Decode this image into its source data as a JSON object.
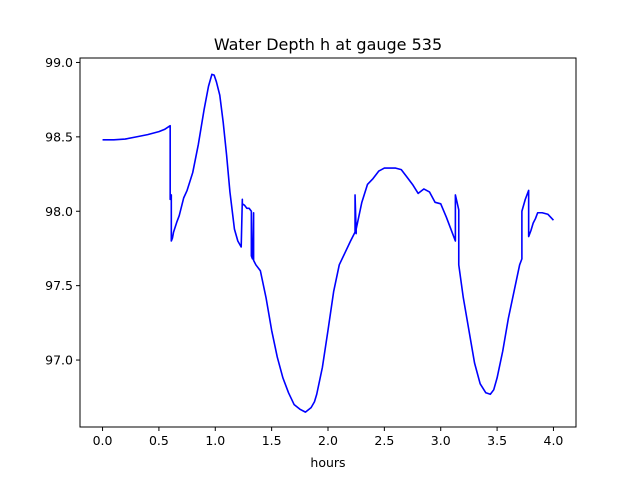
{
  "chart_data": {
    "type": "line",
    "title": "Water Depth h at gauge 535",
    "xlabel": "hours",
    "ylabel": "",
    "xlim": [
      -0.2,
      4.2
    ],
    "ylim": [
      96.55,
      99.03
    ],
    "xticks": [
      0.0,
      0.5,
      1.0,
      1.5,
      2.0,
      2.5,
      3.0,
      3.5,
      4.0
    ],
    "xtick_labels": [
      "0.0",
      "0.5",
      "1.0",
      "1.5",
      "2.0",
      "2.5",
      "3.0",
      "3.5",
      "4.0"
    ],
    "yticks": [
      97.0,
      97.5,
      98.0,
      98.5,
      99.0
    ],
    "ytick_labels": [
      "97.0",
      "97.5",
      "98.0",
      "98.5",
      "99.0"
    ],
    "grid": false,
    "legend": "none",
    "series": [
      {
        "color": "#0000ff",
        "x": [
          0.0,
          0.1,
          0.2,
          0.3,
          0.4,
          0.5,
          0.55,
          0.6,
          0.6,
          0.61,
          0.61,
          0.62,
          0.63,
          0.66,
          0.68,
          0.7,
          0.72,
          0.75,
          0.8,
          0.85,
          0.9,
          0.94,
          0.97,
          0.99,
          1.01,
          1.04,
          1.07,
          1.1,
          1.13,
          1.17,
          1.2,
          1.23,
          1.24,
          1.24,
          1.26,
          1.28,
          1.3,
          1.32,
          1.32,
          1.33,
          1.34,
          1.34,
          1.36,
          1.4,
          1.45,
          1.5,
          1.55,
          1.6,
          1.65,
          1.7,
          1.75,
          1.8,
          1.85,
          1.88,
          1.9,
          1.95,
          2.0,
          2.05,
          2.1,
          2.15,
          2.2,
          2.24,
          2.24,
          2.25,
          2.25,
          2.3,
          2.35,
          2.4,
          2.45,
          2.5,
          2.55,
          2.6,
          2.65,
          2.7,
          2.75,
          2.8,
          2.85,
          2.9,
          2.95,
          3.0,
          3.05,
          3.1,
          3.13,
          3.13,
          3.16,
          3.16,
          3.2,
          3.25,
          3.3,
          3.35,
          3.4,
          3.44,
          3.47,
          3.5,
          3.55,
          3.6,
          3.65,
          3.7,
          3.72,
          3.72,
          3.75,
          3.78,
          3.78,
          3.8,
          3.82,
          3.84,
          3.86,
          3.9,
          3.95,
          4.0
        ],
        "y": [
          98.48,
          98.48,
          98.485,
          98.5,
          98.515,
          98.535,
          98.55,
          98.575,
          98.08,
          98.11,
          97.8,
          97.82,
          97.86,
          97.93,
          97.97,
          98.03,
          98.09,
          98.14,
          98.26,
          98.45,
          98.68,
          98.84,
          98.92,
          98.915,
          98.87,
          98.78,
          98.6,
          98.38,
          98.13,
          97.88,
          97.8,
          97.76,
          98.08,
          98.05,
          98.04,
          98.02,
          98.02,
          98.0,
          97.7,
          97.68,
          97.99,
          97.67,
          97.64,
          97.6,
          97.42,
          97.2,
          97.02,
          96.88,
          96.78,
          96.7,
          96.67,
          96.65,
          96.68,
          96.72,
          96.77,
          96.95,
          97.2,
          97.46,
          97.64,
          97.72,
          97.8,
          97.86,
          98.11,
          97.85,
          97.88,
          98.06,
          98.18,
          98.22,
          98.27,
          98.29,
          98.29,
          98.29,
          98.28,
          98.23,
          98.18,
          98.12,
          98.15,
          98.13,
          98.06,
          98.05,
          97.96,
          97.86,
          97.8,
          98.11,
          98.01,
          97.64,
          97.42,
          97.2,
          96.98,
          96.84,
          96.78,
          96.77,
          96.8,
          96.88,
          97.06,
          97.28,
          97.46,
          97.64,
          97.68,
          98.0,
          98.08,
          98.14,
          97.83,
          97.87,
          97.92,
          97.95,
          97.99,
          97.99,
          97.98,
          97.94
        ]
      }
    ]
  }
}
